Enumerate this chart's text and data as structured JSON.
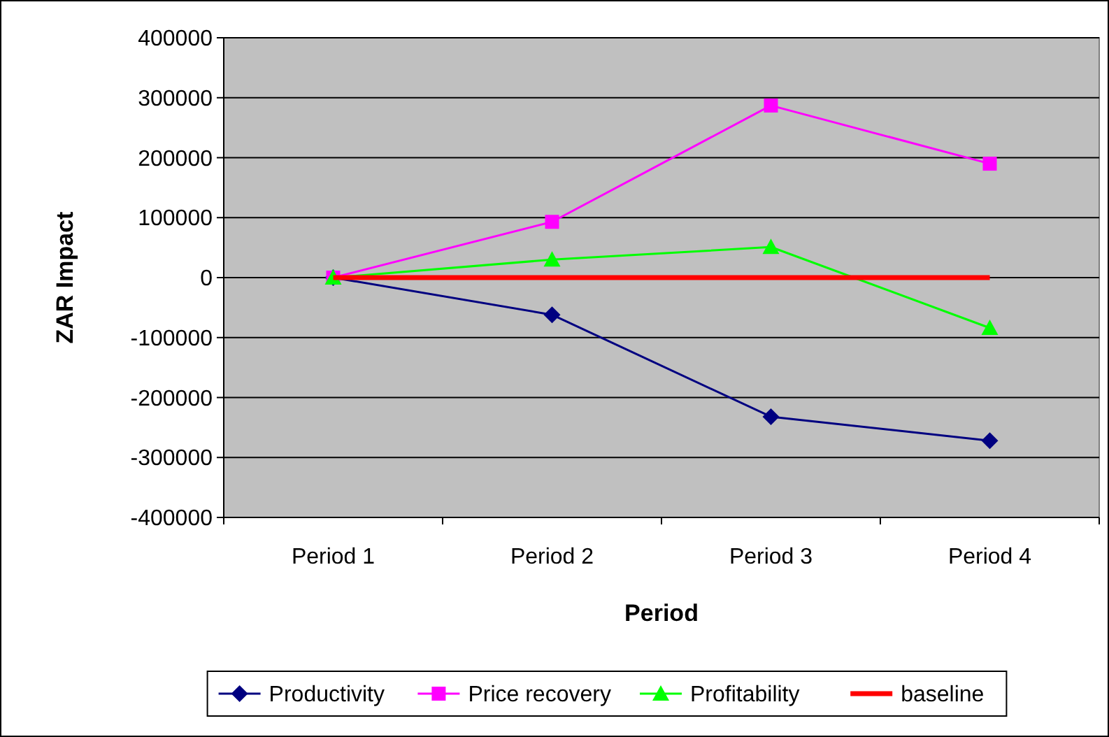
{
  "chart_data": {
    "type": "line",
    "xlabel": "Period",
    "ylabel": "ZAR Impact",
    "categories": [
      "Period 1",
      "Period 2",
      "Period 3",
      "Period 4"
    ],
    "series": [
      {
        "name": "Productivity",
        "color": "#000080",
        "marker": "diamond",
        "values": [
          0,
          -62000,
          -232000,
          -272000
        ]
      },
      {
        "name": "Price recovery",
        "color": "#ff00ff",
        "marker": "square",
        "values": [
          0,
          93000,
          287000,
          190000
        ]
      },
      {
        "name": "Profitability",
        "color": "#00ff00",
        "marker": "triangle",
        "values": [
          0,
          30000,
          51000,
          -84000
        ]
      },
      {
        "name": "baseline",
        "color": "#ff0000",
        "marker": "none",
        "values": [
          0,
          0,
          0,
          0
        ]
      }
    ],
    "ylim": [
      -400000,
      400000
    ],
    "yticks": [
      -400000,
      -300000,
      -200000,
      -100000,
      0,
      100000,
      200000,
      300000,
      400000
    ],
    "grid": "y",
    "legend": "bottom"
  }
}
